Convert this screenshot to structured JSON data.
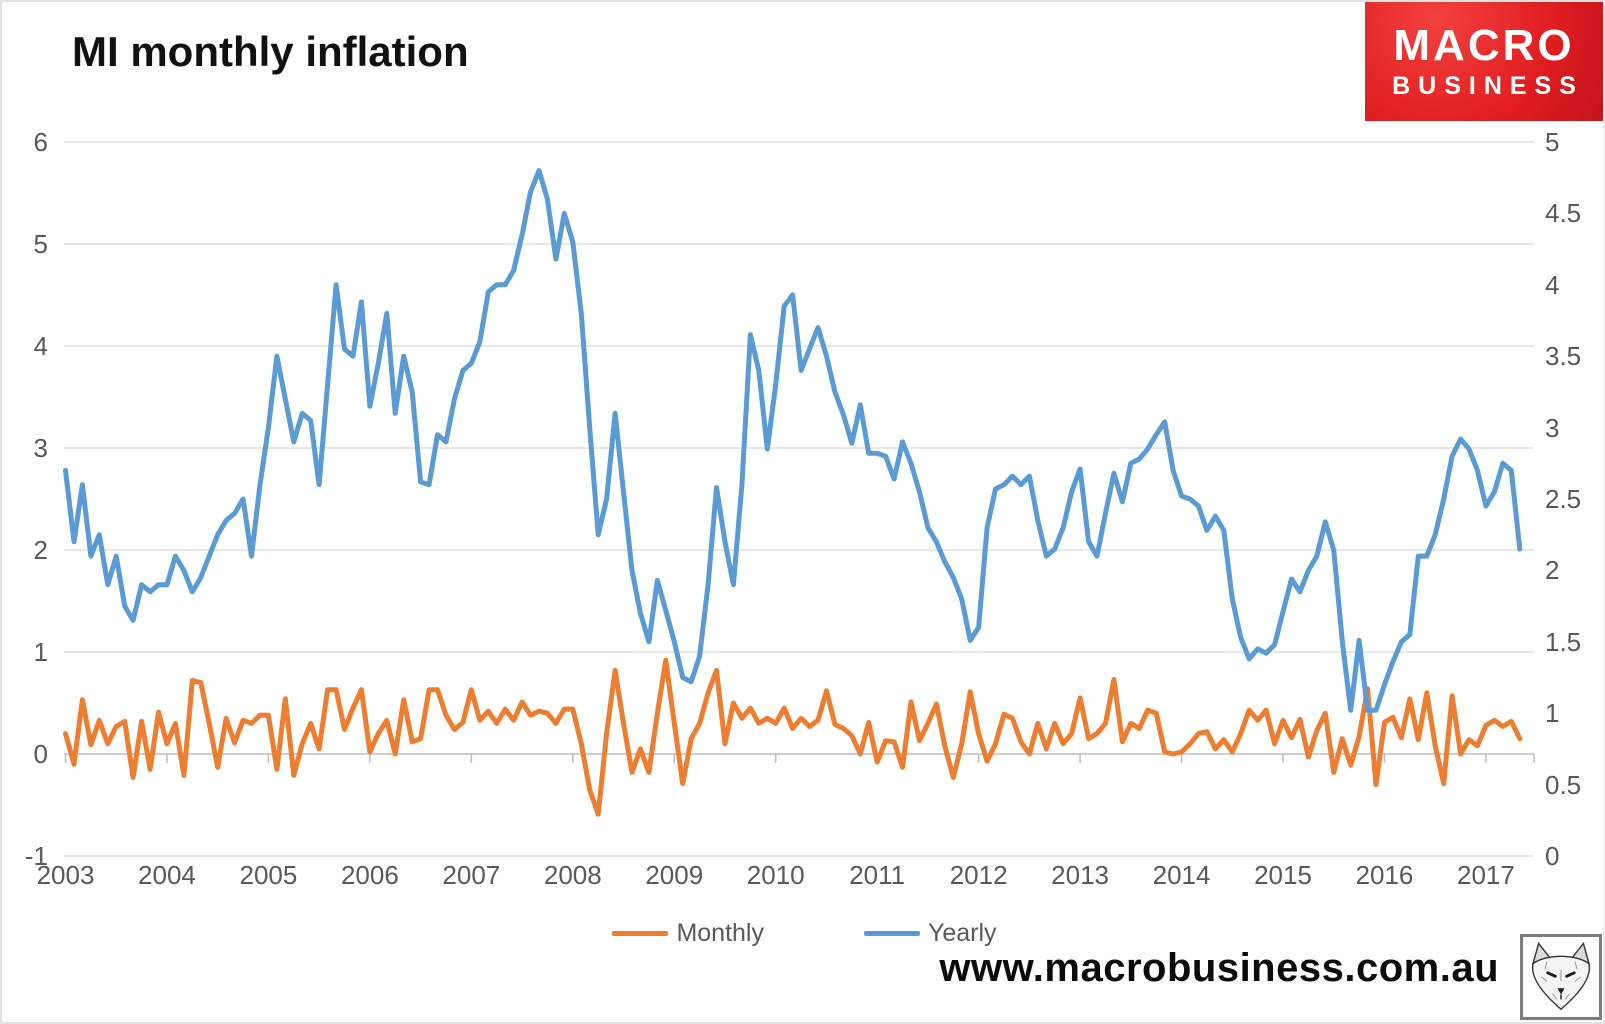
{
  "title": "MI monthly inflation",
  "logo": {
    "line1": "MACRO",
    "line2": "BUSINESS",
    "background_color": "#e01d21",
    "text_color": "#ffffff"
  },
  "legend": {
    "position": "bottom-center",
    "items": [
      {
        "label": "Monthly",
        "color": "#ED7D31"
      },
      {
        "label": "Yearly",
        "color": "#5B9BD5"
      }
    ]
  },
  "footer": {
    "url": "www.macrobusiness.com.au",
    "fox_icon": "fox-sketch-icon"
  },
  "chart_data": {
    "type": "line",
    "title": "MI monthly inflation",
    "x_start": "2003-01",
    "x_end": "2017-05",
    "x_tick_labels": [
      "2003",
      "2004",
      "2005",
      "2006",
      "2007",
      "2008",
      "2009",
      "2010",
      "2011",
      "2012",
      "2013",
      "2014",
      "2015",
      "2016",
      "2017"
    ],
    "grid": "horizontal-only",
    "colors": {
      "grid": "#d9d9d9",
      "axis": "#bdbdbd",
      "tick_text": "#595959"
    },
    "left_axis": {
      "title": "",
      "range": [
        -1,
        6
      ],
      "ticks": [
        "6",
        "5",
        "4",
        "3",
        "2",
        "1",
        "0",
        "-1"
      ],
      "series": "Monthly"
    },
    "right_axis": {
      "title": "",
      "range": [
        0,
        5
      ],
      "ticks": [
        "5",
        "4.5",
        "4",
        "3.5",
        "3",
        "2.5",
        "2",
        "1.5",
        "1",
        "0.5",
        "0"
      ],
      "series": "Yearly"
    },
    "series": [
      {
        "name": "Monthly",
        "axis": "left",
        "color": "#ED7D31",
        "values": [
          0.2,
          -0.1,
          0.53,
          0.09,
          0.33,
          0.1,
          0.27,
          0.32,
          -0.23,
          0.32,
          -0.15,
          0.41,
          0.1,
          0.3,
          -0.21,
          0.72,
          0.7,
          0.3,
          -0.13,
          0.35,
          0.11,
          0.33,
          0.3,
          0.38,
          0.38,
          -0.15,
          0.54,
          -0.21,
          0.1,
          0.3,
          0.05,
          0.63,
          0.63,
          0.24,
          0.45,
          0.63,
          0.02,
          0.2,
          0.33,
          0.0,
          0.53,
          0.12,
          0.15,
          0.63,
          0.63,
          0.38,
          0.24,
          0.31,
          0.63,
          0.33,
          0.42,
          0.3,
          0.44,
          0.33,
          0.51,
          0.38,
          0.42,
          0.4,
          0.3,
          0.44,
          0.44,
          0.1,
          -0.35,
          -0.59,
          0.2,
          0.82,
          0.3,
          -0.18,
          0.05,
          -0.18,
          0.4,
          0.92,
          0.3,
          -0.29,
          0.15,
          0.3,
          0.6,
          0.82,
          0.1,
          0.5,
          0.35,
          0.45,
          0.3,
          0.35,
          0.3,
          0.45,
          0.25,
          0.35,
          0.27,
          0.33,
          0.62,
          0.29,
          0.25,
          0.18,
          0.0,
          0.31,
          -0.08,
          0.13,
          0.12,
          -0.13,
          0.51,
          0.13,
          0.3,
          0.49,
          0.08,
          -0.23,
          0.1,
          0.61,
          0.2,
          -0.07,
          0.1,
          0.39,
          0.35,
          0.12,
          0.0,
          0.3,
          0.05,
          0.3,
          0.1,
          0.2,
          0.55,
          0.15,
          0.2,
          0.3,
          0.73,
          0.12,
          0.3,
          0.25,
          0.43,
          0.4,
          0.02,
          0.0,
          0.02,
          0.1,
          0.2,
          0.22,
          0.05,
          0.14,
          0.02,
          0.2,
          0.43,
          0.33,
          0.43,
          0.1,
          0.33,
          0.16,
          0.34,
          -0.03,
          0.23,
          0.4,
          -0.18,
          0.15,
          -0.11,
          0.17,
          0.64,
          -0.3,
          0.31,
          0.36,
          0.16,
          0.54,
          0.14,
          0.6,
          0.08,
          -0.29,
          0.57,
          0.0,
          0.14,
          0.08,
          0.28,
          0.33,
          0.27,
          0.32,
          0.15
        ]
      },
      {
        "name": "Yearly",
        "axis": "right",
        "color": "#5B9BD5",
        "values": [
          2.7,
          2.2,
          2.6,
          2.1,
          2.25,
          1.9,
          2.1,
          1.75,
          1.65,
          1.9,
          1.85,
          1.9,
          1.9,
          2.1,
          2.0,
          1.85,
          1.95,
          2.1,
          2.25,
          2.35,
          2.4,
          2.5,
          2.1,
          2.6,
          3.0,
          3.5,
          3.2,
          2.9,
          3.1,
          3.05,
          2.6,
          3.3,
          4.0,
          3.55,
          3.5,
          3.88,
          3.15,
          3.45,
          3.8,
          3.1,
          3.5,
          3.25,
          2.62,
          2.6,
          2.95,
          2.9,
          3.2,
          3.4,
          3.45,
          3.6,
          3.95,
          4.0,
          4.0,
          4.1,
          4.35,
          4.65,
          4.8,
          4.6,
          4.18,
          4.5,
          4.3,
          3.8,
          3.0,
          2.25,
          2.5,
          3.1,
          2.55,
          2.0,
          1.7,
          1.5,
          1.93,
          1.72,
          1.5,
          1.25,
          1.22,
          1.4,
          1.9,
          2.58,
          2.2,
          1.9,
          2.6,
          3.65,
          3.4,
          2.85,
          3.3,
          3.85,
          3.93,
          3.4,
          3.55,
          3.7,
          3.5,
          3.25,
          3.09,
          2.89,
          3.16,
          2.82,
          2.82,
          2.8,
          2.64,
          2.9,
          2.75,
          2.55,
          2.3,
          2.2,
          2.06,
          1.95,
          1.8,
          1.51,
          1.6,
          2.3,
          2.57,
          2.6,
          2.66,
          2.6,
          2.66,
          2.35,
          2.1,
          2.15,
          2.3,
          2.55,
          2.71,
          2.2,
          2.1,
          2.4,
          2.68,
          2.48,
          2.75,
          2.78,
          2.85,
          2.95,
          3.04,
          2.7,
          2.52,
          2.5,
          2.45,
          2.28,
          2.38,
          2.28,
          1.8,
          1.53,
          1.38,
          1.45,
          1.42,
          1.48,
          1.71,
          1.94,
          1.85,
          2.0,
          2.1,
          2.34,
          2.14,
          1.51,
          1.02,
          1.51,
          1.02,
          1.02,
          1.2,
          1.36,
          1.5,
          1.55,
          2.1,
          2.1,
          2.25,
          2.5,
          2.8,
          2.92,
          2.85,
          2.7,
          2.45,
          2.55,
          2.75,
          2.7,
          2.15
        ]
      }
    ]
  }
}
